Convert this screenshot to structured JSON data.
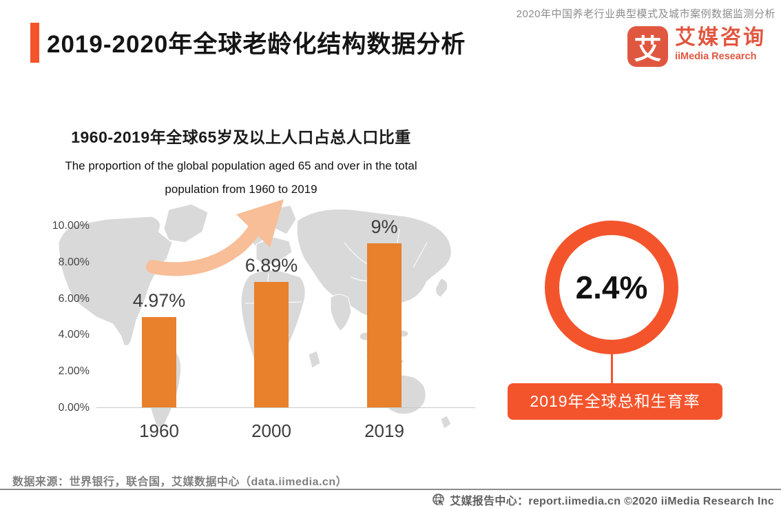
{
  "header": {
    "top_caption": "2020年中国养老行业典型模式及城市案例数据监测分析",
    "title": "2019-2020年全球老龄化结构数据分析"
  },
  "logo": {
    "mark": "艾",
    "name_cn": "艾媒咨询",
    "name_en": "iiMedia Research"
  },
  "chart_data": {
    "type": "bar",
    "title": "1960-2019年全球65岁及以上人口占总人口比重",
    "subtitle_lines": [
      "The proportion of the global population aged 65 and over in the total",
      "population from 1960 to 2019"
    ],
    "categories": [
      "1960",
      "2000",
      "2019"
    ],
    "values": [
      4.97,
      6.89,
      9
    ],
    "value_labels": [
      "4.97%",
      "6.89%",
      "9%"
    ],
    "y_ticks": [
      "10.00%",
      "8.00%",
      "6.00%",
      "4.00%",
      "2.00%",
      "0.00%"
    ],
    "ylim": [
      0,
      10
    ],
    "xlabel": "",
    "ylabel": "",
    "grid": false,
    "legend_position": "none",
    "background": "gray world map with upward orange arrow"
  },
  "highlight": {
    "value": "2.4%",
    "label": "2019年全球总和生育率"
  },
  "footer": {
    "source": "数据来源：世界银行，联合国，艾媒数据中心（data.iimedia.cn）",
    "line": "艾媒报告中心：report.iimedia.cn   ©2020   iiMedia Research Inc"
  },
  "colors": {
    "accent": "#F4542C",
    "bar": "#E8802C",
    "arrow": "#F7BE98",
    "map": "#D9D9D9",
    "logo": "#E05740"
  }
}
